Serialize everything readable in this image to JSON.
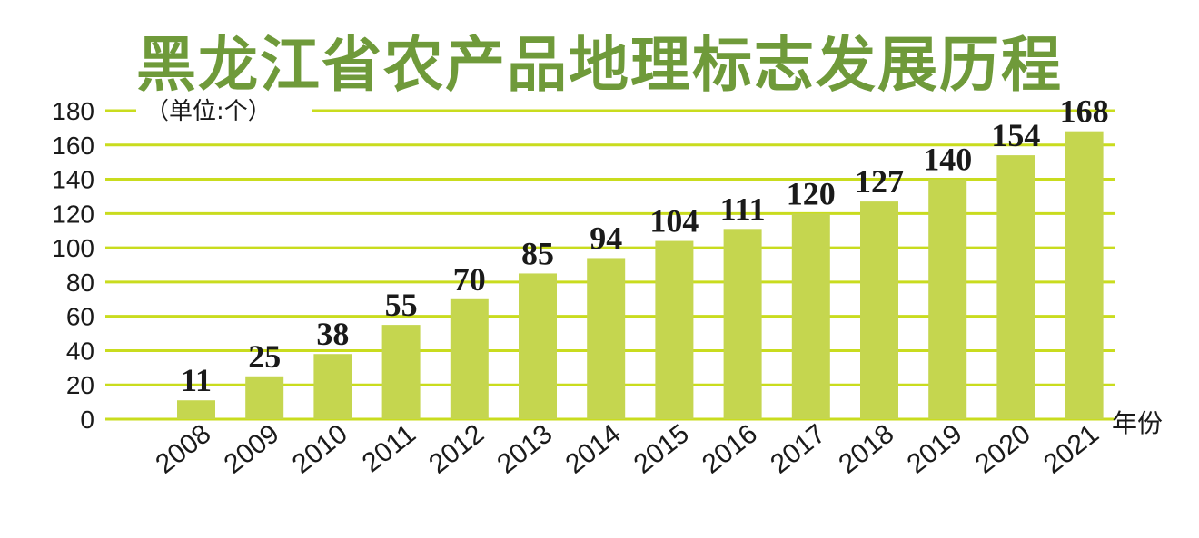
{
  "chart_data": {
    "type": "bar",
    "title": "黑龙江省农产品地理标志发展历程",
    "unit_label": "（单位:个）",
    "xlabel": "年份",
    "ylabel": "",
    "categories": [
      "2008",
      "2009",
      "2010",
      "2011",
      "2012",
      "2013",
      "2014",
      "2015",
      "2016",
      "2017",
      "2018",
      "2019",
      "2020",
      "2021"
    ],
    "values": [
      11,
      25,
      38,
      55,
      70,
      85,
      94,
      104,
      111,
      120,
      127,
      140,
      154,
      168
    ],
    "ylim": [
      0,
      180
    ],
    "yticks": [
      0,
      20,
      40,
      60,
      80,
      100,
      120,
      140,
      160,
      180
    ],
    "grid": true,
    "colors": {
      "bar": "#c5d64f",
      "grid": "#c9dc1e",
      "title": "#6f9a3a"
    }
  }
}
